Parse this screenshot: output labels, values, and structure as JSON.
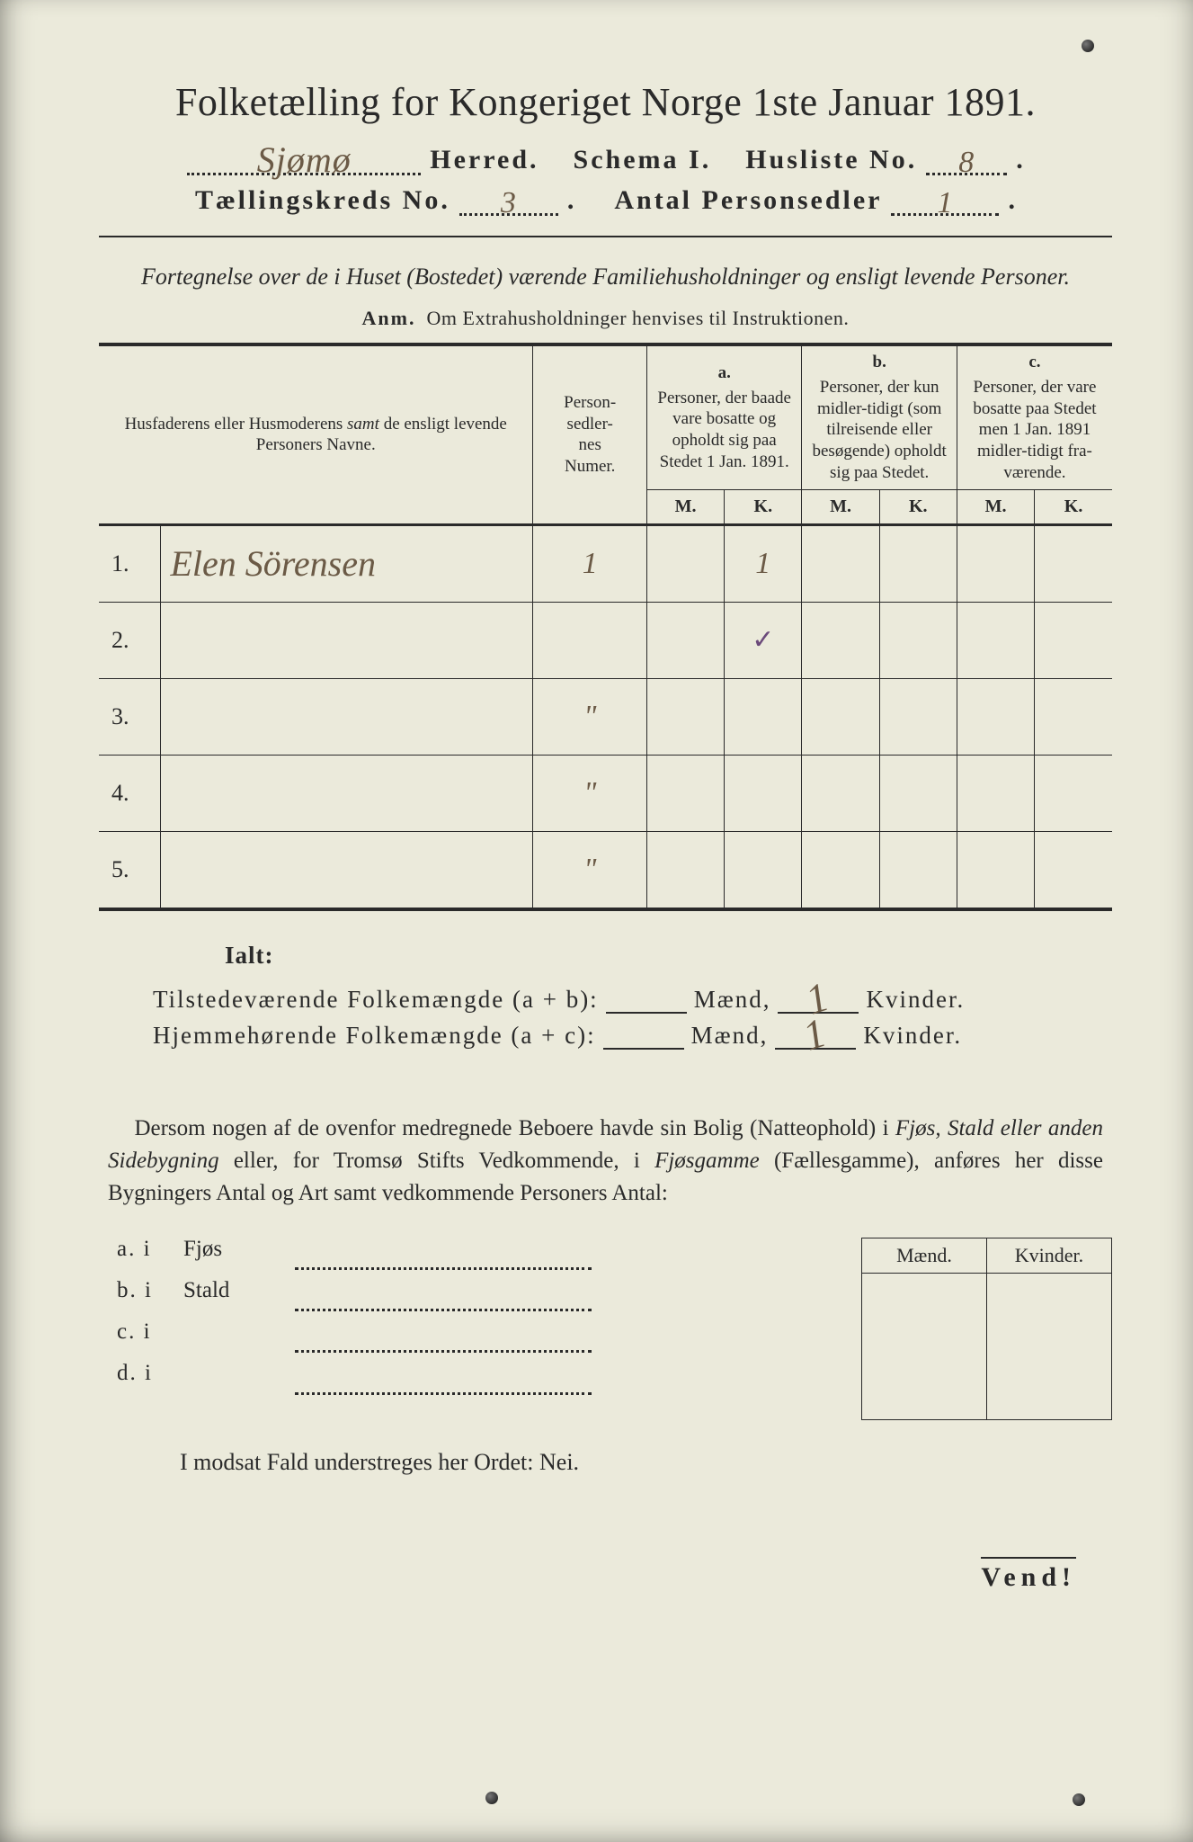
{
  "colors": {
    "paper": "#ebeadb",
    "ink": "#2a2a2a",
    "handwriting": "#6b5a46",
    "tick": "#6b4a7a",
    "outer": "#3a3a3a"
  },
  "title": {
    "main": "Folketælling for Kongeriget Norge 1ste Januar 1891.",
    "herred_hand": "Sjømø",
    "herred_label": "Herred.",
    "schema_label": "Schema I.",
    "husliste_label": "Husliste No.",
    "husliste_hand": "8",
    "kreds_label": "Tællingskreds No.",
    "kreds_hand": "3",
    "antal_label": "Antal Personsedler",
    "antal_hand": "1"
  },
  "intro": {
    "line": "Fortegnelse over de i Huset (Bostedet) værende Familiehusholdninger og ensligt levende Personer.",
    "anm_label": "Anm.",
    "anm_text": "Om Extrahusholdninger henvises til Instruktionen."
  },
  "table": {
    "head": {
      "name": "Husfaderens eller Husmoderens samt de ensligt levende Personers Navne.",
      "name_em": "samt",
      "ps": "Person-\nsedler-\nnes\nNumer.",
      "a_letter": "a.",
      "a_text": "Personer, der baade vare bosatte og opholdt sig paa Stedet 1 Jan. 1891.",
      "b_letter": "b.",
      "b_text": "Personer, der kun midler-tidigt (som tilreisende eller besøgende) opholdt sig paa Stedet.",
      "c_letter": "c.",
      "c_text": "Personer, der vare bosatte paa Stedet men 1 Jan. 1891 midler-tidigt fra-værende.",
      "M": "M.",
      "K": "K."
    },
    "rows": [
      {
        "n": "1.",
        "name": "Elen Sörensen",
        "ps": "1",
        "aM": "",
        "aK": "1",
        "bM": "",
        "bK": "",
        "cM": "",
        "cK": ""
      },
      {
        "n": "2.",
        "name": "",
        "ps": "",
        "aM": "",
        "aK": "✓",
        "bM": "",
        "bK": "",
        "cM": "",
        "cK": ""
      },
      {
        "n": "3.",
        "name": "",
        "ps": "\"",
        "aM": "",
        "aK": "",
        "bM": "",
        "bK": "",
        "cM": "",
        "cK": ""
      },
      {
        "n": "4.",
        "name": "",
        "ps": "\"",
        "aM": "",
        "aK": "",
        "bM": "",
        "bK": "",
        "cM": "",
        "cK": ""
      },
      {
        "n": "5.",
        "name": "",
        "ps": "\"",
        "aM": "",
        "aK": "",
        "bM": "",
        "bK": "",
        "cM": "",
        "cK": ""
      }
    ]
  },
  "totals": {
    "ialt": "Ialt:",
    "row1_label": "Tilstedeværende Folkemængde (a + b):",
    "row2_label": "Hjemmehørende Folkemængde (a + c):",
    "maend": "Mænd,",
    "kvinder": "Kvinder.",
    "row1_m": "",
    "row1_k": "1",
    "row2_m": "",
    "row2_k": "1"
  },
  "lower": {
    "para": "Dersom nogen af de ovenfor medregnede Beboere havde sin Bolig (Natteophold) i Fjøs, Stald eller anden Sidebygning eller, for Tromsø Stifts Vedkommende, i Fjøsgamme (Fællesgamme), anføres her disse Bygningers Antal og Art samt vedkommende Personers Antal:",
    "em1": "Fjøs, Stald eller anden Sidebygning",
    "em2": "Fjøsgamme",
    "side_m": "Mænd.",
    "side_k": "Kvinder.",
    "a": "a.  i",
    "b": "b.  i",
    "c": "c.  i",
    "d": "d.  i",
    "a_word": "Fjøs",
    "b_word": "Stald",
    "c_word": "",
    "d_word": ""
  },
  "footer": {
    "modsat": "I modsat Fald understreges her Ordet: Nei.",
    "vend": "Vend!"
  }
}
